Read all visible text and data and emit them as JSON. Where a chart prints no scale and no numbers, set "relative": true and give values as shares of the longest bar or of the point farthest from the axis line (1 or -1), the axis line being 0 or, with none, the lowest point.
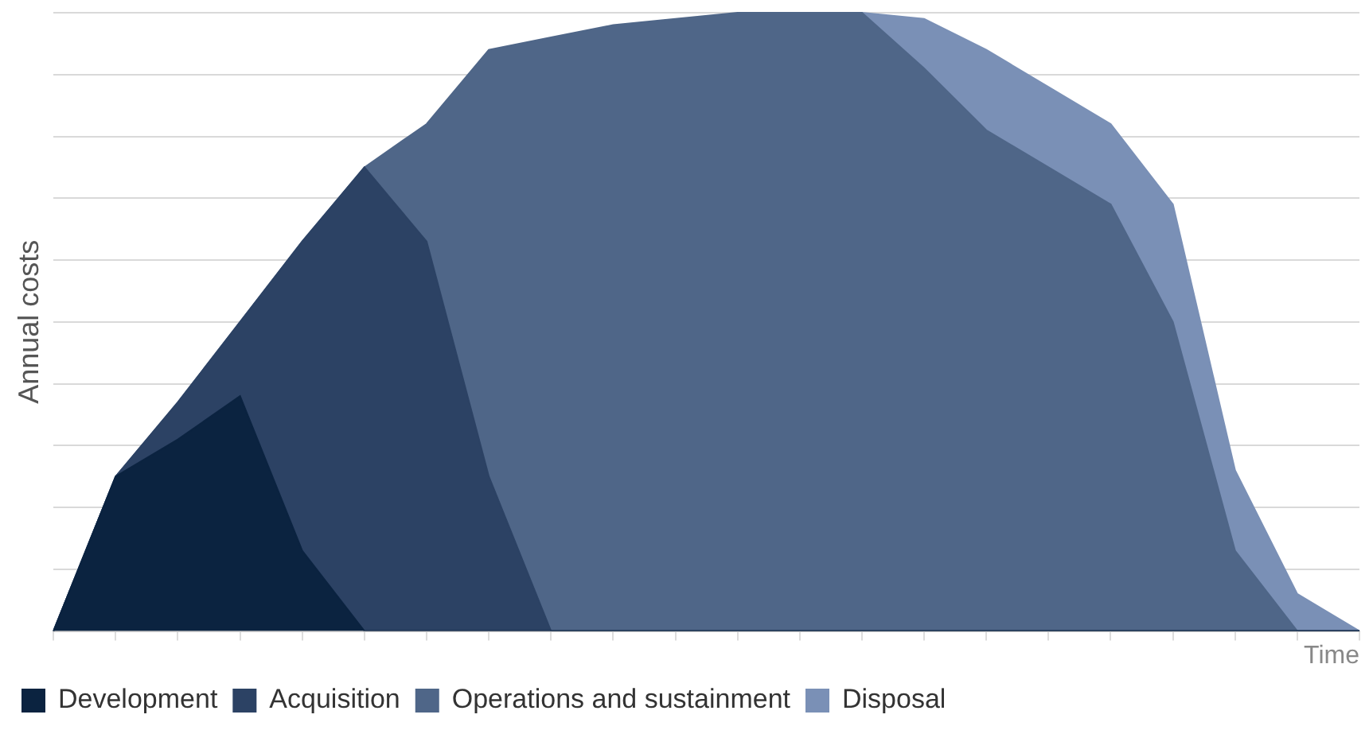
{
  "chart_data": {
    "type": "area",
    "stacked": true,
    "relative": true,
    "xlabel": "Time",
    "ylabel": "Annual costs",
    "categories": [
      null,
      null,
      null,
      null,
      null,
      null,
      null,
      null,
      null,
      null,
      null,
      null,
      null,
      null,
      null,
      null,
      null,
      null,
      null,
      null,
      null,
      null
    ],
    "series": [
      {
        "name": "Development",
        "color": "#0b2340",
        "values": [
          0,
          0.25,
          0.31,
          0.38,
          0.13,
          0,
          0,
          0,
          0,
          0,
          0,
          0,
          0,
          0,
          0,
          0,
          0,
          0,
          0,
          0,
          0,
          0
        ]
      },
      {
        "name": "Acquisition",
        "color": "#2c4264",
        "values": [
          0,
          0,
          0.06,
          0.12,
          0.5,
          0.75,
          0.63,
          0.25,
          0,
          0,
          0,
          0,
          0,
          0,
          0,
          0,
          0,
          0,
          0,
          0,
          0,
          0
        ]
      },
      {
        "name": "Operations and sustainment",
        "color": "#4f6688",
        "values": [
          0,
          0,
          0,
          0,
          0,
          0,
          0.19,
          0.69,
          0.96,
          0.98,
          0.99,
          1,
          1,
          1,
          0.91,
          0.81,
          0.75,
          0.69,
          0.5,
          0.13,
          0,
          0
        ]
      },
      {
        "name": "Disposal",
        "color": "#7a90b6",
        "values": [
          null,
          null,
          null,
          null,
          null,
          null,
          null,
          null,
          null,
          null,
          null,
          null,
          null,
          0,
          0.08,
          0.13,
          0.13,
          0.13,
          0.19,
          0.13,
          0.06,
          0
        ]
      }
    ],
    "grid": "y",
    "legend": "bottom"
  }
}
